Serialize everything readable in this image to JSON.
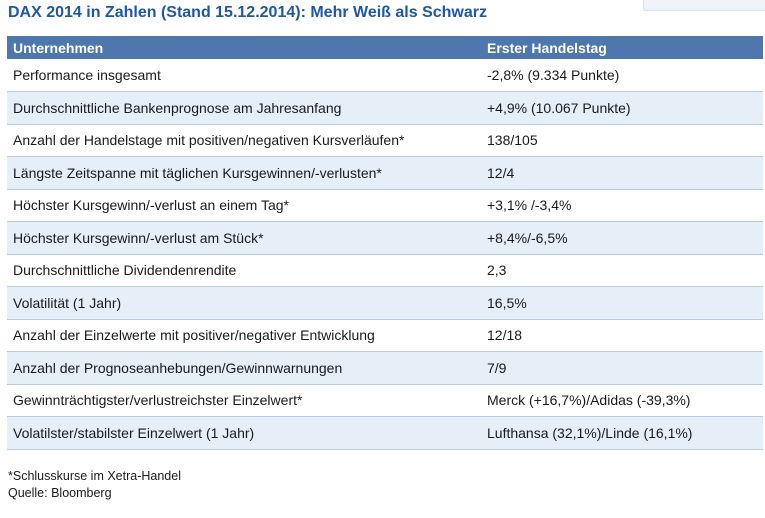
{
  "title": "DAX 2014 in Zahlen (Stand 15.12.2014): Mehr Weiß als Schwarz",
  "table": {
    "headers": [
      "Unternehmen",
      "Erster Handelstag"
    ],
    "rows": [
      [
        "Performance insgesamt",
        "-2,8% (9.334 Punkte)"
      ],
      [
        "Durchschnittliche Bankenprognose am Jahresanfang",
        "+4,9% (10.067 Punkte)"
      ],
      [
        "Anzahl der Handelstage mit positiven/negativen Kursverläufen*",
        "138/105"
      ],
      [
        "Längste Zeitspanne mit täglichen Kursgewinnen/-verlusten*",
        "12/4"
      ],
      [
        "Höchster Kursgewinn/-verlust an einem Tag*",
        "+3,1% /-3,4%"
      ],
      [
        "Höchster Kursgewinn/-verlust am Stück*",
        "+8,4%/-6,5%"
      ],
      [
        "Durchschnittliche Dividendenrendite",
        "2,3"
      ],
      [
        "Volatilität (1 Jahr)",
        "16,5%"
      ],
      [
        "Anzahl der Einzelwerte mit positiver/negativer Entwicklung",
        "12/18"
      ],
      [
        "Anzahl der Prognoseanhebungen/Gewinnwarnungen",
        "7/9"
      ],
      [
        "Gewinnträchtigster/verlustreichster Einzelwert*",
        "Merck (+16,7%)/Adidas (-39,3%)"
      ],
      [
        "Volatilster/stabilster Einzelwert (1 Jahr)",
        "Lufthansa (32,1%)/Linde (16,1%)"
      ]
    ]
  },
  "footnote": "*Schlusskurse im Xetra-Handel",
  "source": "Quelle: Bloomberg",
  "colors": {
    "title": "#1e57a6",
    "header_bg": "#4e78ad",
    "row_alt_bg": "#e6eef8"
  }
}
